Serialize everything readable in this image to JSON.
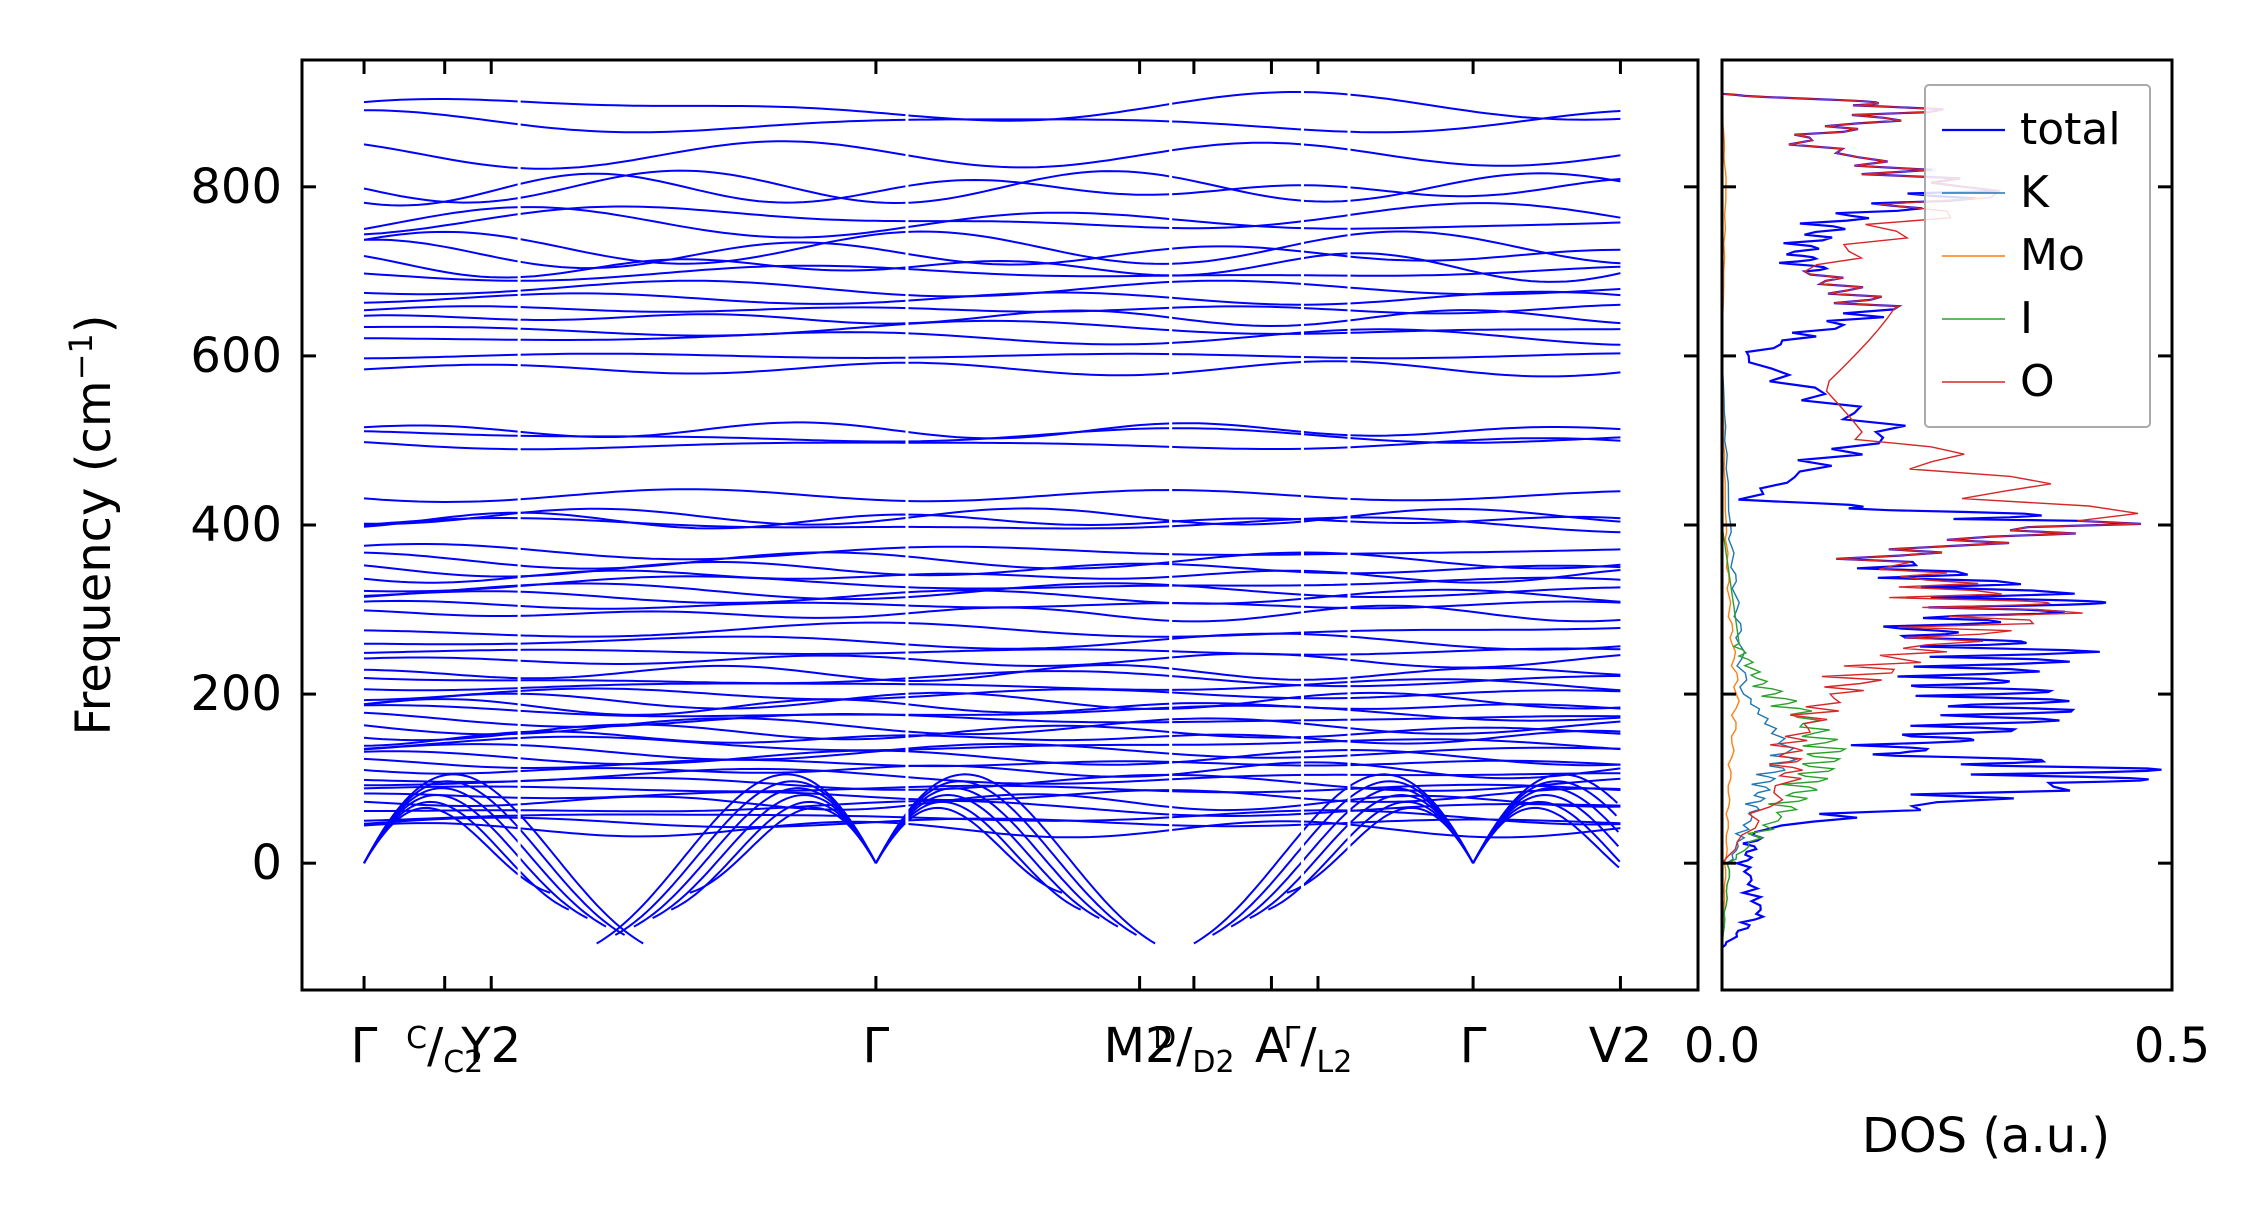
{
  "colors": {
    "band": "#0000ff",
    "total": "#0000ff",
    "K": "#1f77b4",
    "Mo": "#ff7f0e",
    "I": "#2ca02c",
    "O": "#d62728",
    "axis": "#000000"
  },
  "chart_data": [
    {
      "type": "line",
      "name": "phonon-band-structure",
      "ylabel_main": "Frequency (cm",
      "ylabel_sup": "−1",
      "ylabel_close": ")",
      "ylim": [
        -150,
        950
      ],
      "yticks": [
        0,
        200,
        400,
        600,
        800
      ],
      "ytick_labels": [
        "0",
        "200",
        "400",
        "600",
        "800"
      ],
      "path_segments": [
        {
          "from": "Γ",
          "to": "C/C2",
          "end": "Y2",
          "x_range": [
            0.0,
            1.0
          ]
        },
        {
          "from": "Y2",
          "to": "Γ",
          "x_range": [
            1.0,
            3.5
          ]
        },
        {
          "from": "Γ",
          "to": "M2",
          "x_range": [
            3.5,
            5.2
          ]
        },
        {
          "from": "D/D2",
          "to": "A",
          "x_range": [
            5.2,
            6.05
          ]
        },
        {
          "from": "Γ",
          "to": "L2",
          "x_range": [
            6.05,
            6.35
          ]
        },
        {
          "from": "Γ",
          "to": "V2",
          "x_range": [
            6.35,
            8.35
          ]
        }
      ],
      "xticks": [
        {
          "x": 0.0,
          "label": "Γ"
        },
        {
          "x": 0.52,
          "label": "C",
          "sub": "C2",
          "slash": true
        },
        {
          "x": 0.82,
          "label": "Y",
          "index": "2"
        },
        {
          "x": 3.3,
          "label": "Γ"
        },
        {
          "x": 5.0,
          "label": "M",
          "index": "2"
        },
        {
          "x": 5.35,
          "label": "D",
          "sub": "D2",
          "slash": true
        },
        {
          "x": 5.85,
          "label": "A"
        },
        {
          "x": 6.15,
          "label": "Γ",
          "sub": "L2",
          "slash": true
        },
        {
          "x": 7.15,
          "label": "Γ"
        },
        {
          "x": 8.1,
          "label": "V",
          "index": "2"
        }
      ],
      "xlim": [
        -0.4,
        8.6
      ],
      "flat_band_levels": [
        893,
        875,
        838,
        800,
        797,
        762,
        757,
        728,
        720,
        706,
        698,
        680,
        668,
        655,
        645,
        632,
        622,
        600,
        585,
        512,
        505,
        495,
        435,
        410,
        405,
        400,
        368,
        358,
        348,
        340,
        330,
        322,
        315,
        305,
        295,
        275,
        262,
        250,
        240,
        225,
        218,
        210,
        200,
        192,
        185,
        178,
        170,
        162,
        155,
        148,
        140,
        132,
        125,
        118,
        110,
        102,
        95,
        88,
        80,
        72,
        65,
        55,
        48,
        40
      ],
      "acoustic_min_values": [
        -35,
        -55,
        -65,
        -75,
        -85,
        -95
      ],
      "gamma_points_zero_frequency": [
        "Γ",
        "Γ",
        "Γ"
      ]
    },
    {
      "type": "line",
      "name": "density-of-states",
      "xlabel": "DOS (a.u.)",
      "xlim": [
        0.0,
        0.5
      ],
      "xticks": [
        0.0,
        0.5
      ],
      "xtick_labels": [
        "0.0",
        "0.5"
      ],
      "ylim": [
        -150,
        950
      ],
      "legend_position": "top-right",
      "series": [
        {
          "name": "total",
          "peaks": [
            [
              -100,
              0.0
            ],
            [
              -60,
              0.05
            ],
            [
              0,
              0.03
            ],
            [
              40,
              0.05
            ],
            [
              95,
              0.47
            ],
            [
              112,
              0.49
            ],
            [
              132,
              0.22
            ],
            [
              150,
              0.3
            ],
            [
              175,
              0.4
            ],
            [
              200,
              0.38
            ],
            [
              215,
              0.32
            ],
            [
              250,
              0.42
            ],
            [
              275,
              0.25
            ],
            [
              305,
              0.43
            ],
            [
              315,
              0.42
            ],
            [
              360,
              0.2
            ],
            [
              405,
              0.49
            ],
            [
              430,
              0.03
            ],
            [
              510,
              0.22
            ],
            [
              600,
              0.03
            ],
            [
              655,
              0.21
            ],
            [
              700,
              0.12
            ],
            [
              720,
              0.1
            ],
            [
              760,
              0.15
            ],
            [
              795,
              0.33
            ],
            [
              855,
              0.1
            ],
            [
              895,
              0.27
            ],
            [
              910,
              0.0
            ]
          ]
        },
        {
          "name": "K",
          "peaks": [
            [
              -100,
              0.0
            ],
            [
              0,
              0.01
            ],
            [
              60,
              0.04
            ],
            [
              100,
              0.06
            ],
            [
              130,
              0.09
            ],
            [
              200,
              0.03
            ],
            [
              300,
              0.02
            ],
            [
              400,
              0.01
            ],
            [
              600,
              0.0
            ],
            [
              910,
              0.0
            ]
          ]
        },
        {
          "name": "Mo",
          "peaks": [
            [
              -100,
              0.0
            ],
            [
              0,
              0.005
            ],
            [
              100,
              0.01
            ],
            [
              200,
              0.02
            ],
            [
              300,
              0.01
            ],
            [
              400,
              0.005
            ],
            [
              600,
              0.0
            ],
            [
              800,
              0.005
            ],
            [
              910,
              0.0
            ]
          ]
        },
        {
          "name": "I",
          "peaks": [
            [
              -100,
              0.0
            ],
            [
              0,
              0.01
            ],
            [
              60,
              0.08
            ],
            [
              100,
              0.12
            ],
            [
              135,
              0.14
            ],
            [
              180,
              0.1
            ],
            [
              215,
              0.05
            ],
            [
              260,
              0.02
            ],
            [
              400,
              0.0
            ],
            [
              600,
              0.0
            ],
            [
              910,
              0.0
            ]
          ]
        },
        {
          "name": "O",
          "peaks": [
            [
              -100,
              0.0
            ],
            [
              0,
              0.0
            ],
            [
              100,
              0.09
            ],
            [
              140,
              0.09
            ],
            [
              200,
              0.15
            ],
            [
              250,
              0.25
            ],
            [
              300,
              0.42
            ],
            [
              310,
              0.35
            ],
            [
              360,
              0.2
            ],
            [
              405,
              0.49
            ],
            [
              510,
              0.2
            ],
            [
              655,
              0.21
            ],
            [
              700,
              0.12
            ],
            [
              795,
              0.33
            ],
            [
              855,
              0.1
            ],
            [
              895,
              0.27
            ],
            [
              910,
              0.0
            ]
          ]
        }
      ]
    }
  ]
}
